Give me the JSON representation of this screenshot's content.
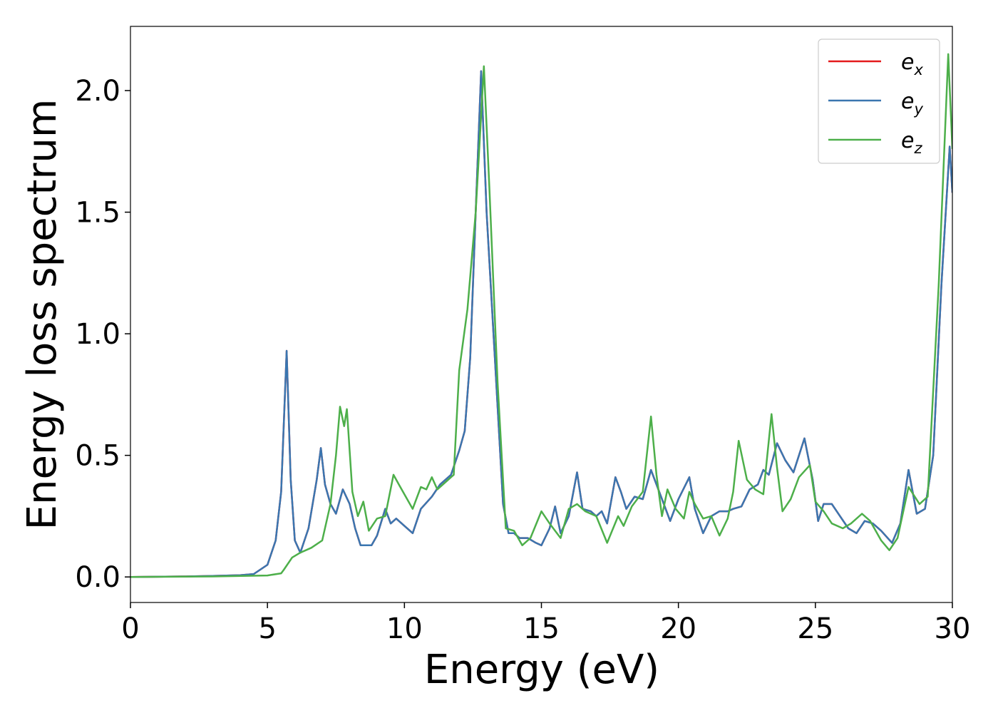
{
  "chart_data": {
    "type": "line",
    "xlabel": "Energy (eV)",
    "ylabel": "Energy loss spectrum",
    "xlim": [
      0,
      30
    ],
    "xticks": [
      0,
      5,
      10,
      15,
      20,
      25,
      30
    ],
    "ylim": [
      -0.105,
      2.264
    ],
    "yticks": [
      {
        "value": 0,
        "label": "0.0"
      },
      0.5,
      {
        "value": 1,
        "label": "1.0"
      },
      1.5,
      {
        "value": 2,
        "label": "2.0"
      }
    ],
    "legend": "upper right",
    "series": [
      {
        "name": "e_x",
        "color": "#e41a1c",
        "x": [
          0,
          2,
          3,
          4,
          4.5,
          5,
          5.3,
          5.5,
          5.7,
          5.85,
          6,
          6.2,
          6.5,
          6.8,
          6.95,
          7.1,
          7.3,
          7.5,
          7.75,
          8,
          8.2,
          8.4,
          8.8,
          9,
          9.3,
          9.5,
          9.7,
          10,
          10.3,
          10.6,
          11,
          11.3,
          11.7,
          12,
          12.2,
          12.4,
          12.6,
          12.8,
          13,
          13.3,
          13.6,
          13.8,
          14,
          14.2,
          14.5,
          14.8,
          15,
          15.3,
          15.5,
          15.7,
          16,
          16.3,
          16.5,
          16.8,
          17,
          17.2,
          17.4,
          17.7,
          17.9,
          18.1,
          18.4,
          18.7,
          19,
          19.3,
          19.7,
          20,
          20.4,
          20.6,
          20.9,
          21.2,
          21.5,
          21.8,
          22,
          22.3,
          22.6,
          22.9,
          23.1,
          23.3,
          23.6,
          23.9,
          24.2,
          24.6,
          24.9,
          25.1,
          25.3,
          25.6,
          25.9,
          26.2,
          26.5,
          26.8,
          27.1,
          27.4,
          27.8,
          28.1,
          28.4,
          28.7,
          29,
          29.3,
          29.6,
          29.9,
          30
        ],
        "values": [
          0,
          0.002,
          0.004,
          0.007,
          0.012,
          0.05,
          0.15,
          0.35,
          0.93,
          0.4,
          0.15,
          0.1,
          0.2,
          0.4,
          0.53,
          0.38,
          0.3,
          0.26,
          0.36,
          0.3,
          0.2,
          0.13,
          0.13,
          0.17,
          0.28,
          0.22,
          0.24,
          0.21,
          0.18,
          0.28,
          0.33,
          0.38,
          0.42,
          0.52,
          0.6,
          0.9,
          1.5,
          2.08,
          1.5,
          0.9,
          0.3,
          0.18,
          0.18,
          0.16,
          0.16,
          0.14,
          0.13,
          0.2,
          0.29,
          0.18,
          0.25,
          0.43,
          0.28,
          0.27,
          0.25,
          0.27,
          0.22,
          0.41,
          0.35,
          0.28,
          0.33,
          0.32,
          0.44,
          0.35,
          0.23,
          0.32,
          0.41,
          0.28,
          0.18,
          0.25,
          0.27,
          0.27,
          0.28,
          0.29,
          0.36,
          0.38,
          0.44,
          0.42,
          0.55,
          0.48,
          0.43,
          0.57,
          0.4,
          0.23,
          0.3,
          0.3,
          0.25,
          0.2,
          0.18,
          0.23,
          0.22,
          0.19,
          0.14,
          0.22,
          0.44,
          0.26,
          0.28,
          0.5,
          1.2,
          1.77,
          1.58
        ]
      },
      {
        "name": "e_y",
        "color": "#3a76b0",
        "x": [
          0,
          2,
          3,
          4,
          4.5,
          5,
          5.3,
          5.5,
          5.7,
          5.85,
          6,
          6.2,
          6.5,
          6.8,
          6.95,
          7.1,
          7.3,
          7.5,
          7.75,
          8,
          8.2,
          8.4,
          8.8,
          9,
          9.3,
          9.5,
          9.7,
          10,
          10.3,
          10.6,
          11,
          11.3,
          11.7,
          12,
          12.2,
          12.4,
          12.6,
          12.8,
          13,
          13.3,
          13.6,
          13.8,
          14,
          14.2,
          14.5,
          14.8,
          15,
          15.3,
          15.5,
          15.7,
          16,
          16.3,
          16.5,
          16.8,
          17,
          17.2,
          17.4,
          17.7,
          17.9,
          18.1,
          18.4,
          18.7,
          19,
          19.3,
          19.7,
          20,
          20.4,
          20.6,
          20.9,
          21.2,
          21.5,
          21.8,
          22,
          22.3,
          22.6,
          22.9,
          23.1,
          23.3,
          23.6,
          23.9,
          24.2,
          24.6,
          24.9,
          25.1,
          25.3,
          25.6,
          25.9,
          26.2,
          26.5,
          26.8,
          27.1,
          27.4,
          27.8,
          28.1,
          28.4,
          28.7,
          29,
          29.3,
          29.6,
          29.9,
          30
        ],
        "values": [
          0,
          0.002,
          0.004,
          0.007,
          0.012,
          0.05,
          0.15,
          0.35,
          0.93,
          0.4,
          0.15,
          0.1,
          0.2,
          0.4,
          0.53,
          0.38,
          0.3,
          0.26,
          0.36,
          0.3,
          0.2,
          0.13,
          0.13,
          0.17,
          0.28,
          0.22,
          0.24,
          0.21,
          0.18,
          0.28,
          0.33,
          0.38,
          0.42,
          0.52,
          0.6,
          0.9,
          1.5,
          2.08,
          1.5,
          0.9,
          0.3,
          0.18,
          0.18,
          0.16,
          0.16,
          0.14,
          0.13,
          0.2,
          0.29,
          0.18,
          0.25,
          0.43,
          0.28,
          0.27,
          0.25,
          0.27,
          0.22,
          0.41,
          0.35,
          0.28,
          0.33,
          0.32,
          0.44,
          0.35,
          0.23,
          0.32,
          0.41,
          0.28,
          0.18,
          0.25,
          0.27,
          0.27,
          0.28,
          0.29,
          0.36,
          0.38,
          0.44,
          0.42,
          0.55,
          0.48,
          0.43,
          0.57,
          0.4,
          0.23,
          0.3,
          0.3,
          0.25,
          0.2,
          0.18,
          0.23,
          0.22,
          0.19,
          0.14,
          0.22,
          0.44,
          0.26,
          0.28,
          0.5,
          1.2,
          1.77,
          1.58
        ]
      },
      {
        "name": "e_z",
        "color": "#4daf4a",
        "x": [
          0,
          3,
          5,
          5.5,
          5.6,
          5.9,
          6.2,
          6.6,
          7,
          7.3,
          7.5,
          7.65,
          7.8,
          7.9,
          8.1,
          8.3,
          8.5,
          8.7,
          9,
          9.3,
          9.6,
          9.8,
          10,
          10.3,
          10.6,
          10.8,
          11,
          11.2,
          11.5,
          11.8,
          12,
          12.3,
          12.6,
          12.9,
          13.1,
          13.4,
          13.7,
          14,
          14.3,
          14.6,
          15,
          15.3,
          15.7,
          16,
          16.3,
          16.6,
          17,
          17.4,
          17.8,
          18,
          18.3,
          18.7,
          19,
          19.2,
          19.4,
          19.6,
          19.9,
          20.2,
          20.4,
          20.6,
          20.9,
          21.2,
          21.5,
          21.8,
          22,
          22.2,
          22.5,
          22.8,
          23.1,
          23.4,
          23.6,
          23.8,
          24.1,
          24.4,
          24.8,
          25,
          25.3,
          25.6,
          26,
          26.3,
          26.7,
          27,
          27.4,
          27.7,
          28,
          28.4,
          28.8,
          29.1,
          29.5,
          29.85,
          30
        ],
        "values": [
          0,
          0.002,
          0.006,
          0.015,
          0.03,
          0.08,
          0.1,
          0.12,
          0.15,
          0.3,
          0.5,
          0.7,
          0.62,
          0.69,
          0.35,
          0.25,
          0.31,
          0.19,
          0.24,
          0.25,
          0.42,
          0.38,
          0.34,
          0.28,
          0.37,
          0.36,
          0.41,
          0.36,
          0.39,
          0.42,
          0.85,
          1.1,
          1.5,
          2.1,
          1.6,
          0.8,
          0.2,
          0.19,
          0.13,
          0.16,
          0.27,
          0.22,
          0.16,
          0.28,
          0.3,
          0.27,
          0.25,
          0.14,
          0.25,
          0.21,
          0.29,
          0.35,
          0.66,
          0.42,
          0.25,
          0.36,
          0.28,
          0.24,
          0.35,
          0.3,
          0.24,
          0.25,
          0.17,
          0.24,
          0.35,
          0.56,
          0.4,
          0.36,
          0.34,
          0.67,
          0.45,
          0.27,
          0.32,
          0.41,
          0.46,
          0.31,
          0.27,
          0.22,
          0.2,
          0.22,
          0.26,
          0.23,
          0.15,
          0.11,
          0.16,
          0.37,
          0.3,
          0.33,
          1.2,
          2.15,
          1.76
        ]
      }
    ]
  }
}
